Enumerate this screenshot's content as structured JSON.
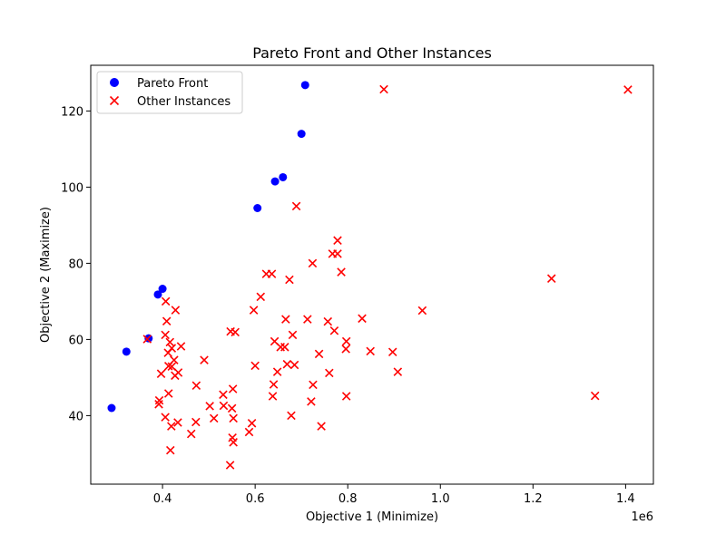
{
  "chart_data": {
    "type": "scatter",
    "title": "Pareto Front and Other Instances",
    "xlabel": "Objective 1 (Minimize)",
    "ylabel": "Objective 2 (Maximize)",
    "x_offset_label": "1e6",
    "xlim": [
      245000,
      1460000
    ],
    "ylim": [
      22,
      132
    ],
    "x_ticks": [
      0.4,
      0.6,
      0.8,
      1.0,
      1.2,
      1.4
    ],
    "x_tick_labels": [
      "0.4",
      "0.6",
      "0.8",
      "1.0",
      "1.2",
      "1.4"
    ],
    "y_ticks": [
      40,
      60,
      80,
      100,
      120
    ],
    "y_tick_labels": [
      "40",
      "60",
      "80",
      "100",
      "120"
    ],
    "grid": false,
    "legend_position": "top-left",
    "series": [
      {
        "name": "Pareto Front",
        "marker": "circle",
        "color": "#0000ff",
        "points": [
          [
            290000,
            42.0
          ],
          [
            322000,
            56.8
          ],
          [
            370000,
            60.3
          ],
          [
            390000,
            71.8
          ],
          [
            400000,
            73.3
          ],
          [
            605000,
            94.5
          ],
          [
            643000,
            101.5
          ],
          [
            660000,
            102.6
          ],
          [
            700000,
            114.0
          ],
          [
            708000,
            126.8
          ]
        ]
      },
      {
        "name": "Other Instances",
        "marker": "x",
        "color": "#ff0000",
        "points": [
          [
            878000,
            125.7
          ],
          [
            1405000,
            125.6
          ],
          [
            689000,
            95.0
          ],
          [
            778000,
            86.0
          ],
          [
            767000,
            82.5
          ],
          [
            778000,
            82.5
          ],
          [
            724000,
            80.0
          ],
          [
            786000,
            77.7
          ],
          [
            624000,
            77.2
          ],
          [
            636000,
            77.2
          ],
          [
            674000,
            75.7
          ],
          [
            1240000,
            76.0
          ],
          [
            407000,
            70.0
          ],
          [
            612000,
            71.2
          ],
          [
            428000,
            67.7
          ],
          [
            597000,
            67.7
          ],
          [
            961000,
            67.6
          ],
          [
            367000,
            60.1
          ],
          [
            409000,
            64.8
          ],
          [
            666000,
            65.3
          ],
          [
            713000,
            65.3
          ],
          [
            757000,
            64.7
          ],
          [
            831000,
            65.5
          ],
          [
            547000,
            62.1
          ],
          [
            557000,
            61.9
          ],
          [
            771000,
            62.3
          ],
          [
            406000,
            61.2
          ],
          [
            681000,
            61.2
          ],
          [
            416000,
            59.3
          ],
          [
            420000,
            57.7
          ],
          [
            412000,
            56.5
          ],
          [
            440000,
            58.2
          ],
          [
            642000,
            59.5
          ],
          [
            797000,
            59.5
          ],
          [
            655000,
            58.0
          ],
          [
            664000,
            58.0
          ],
          [
            796000,
            57.5
          ],
          [
            738000,
            56.2
          ],
          [
            849000,
            56.9
          ],
          [
            897000,
            56.7
          ],
          [
            425000,
            54.6
          ],
          [
            490000,
            54.6
          ],
          [
            600000,
            53.1
          ],
          [
            669000,
            53.5
          ],
          [
            685000,
            53.3
          ],
          [
            413000,
            53.0
          ],
          [
            420000,
            52.9
          ],
          [
            397000,
            51.0
          ],
          [
            434000,
            51.3
          ],
          [
            427000,
            50.5
          ],
          [
            648000,
            51.5
          ],
          [
            760000,
            51.2
          ],
          [
            908000,
            51.5
          ],
          [
            473000,
            47.9
          ],
          [
            640000,
            48.2
          ],
          [
            725000,
            48.1
          ],
          [
            531000,
            45.5
          ],
          [
            552000,
            47.0
          ],
          [
            638000,
            45.1
          ],
          [
            413000,
            45.8
          ],
          [
            797000,
            45.1
          ],
          [
            1334000,
            45.2
          ],
          [
            393000,
            44.0
          ],
          [
            392000,
            43.0
          ],
          [
            502000,
            42.5
          ],
          [
            532000,
            42.6
          ],
          [
            550000,
            41.9
          ],
          [
            721000,
            43.7
          ],
          [
            406000,
            39.6
          ],
          [
            511000,
            39.3
          ],
          [
            553000,
            39.3
          ],
          [
            593000,
            38.0
          ],
          [
            678000,
            40.0
          ],
          [
            419000,
            37.2
          ],
          [
            433000,
            38.2
          ],
          [
            472000,
            38.3
          ],
          [
            743000,
            37.2
          ],
          [
            462000,
            35.2
          ],
          [
            587000,
            35.7
          ],
          [
            551000,
            34.2
          ],
          [
            553000,
            33.0
          ],
          [
            417000,
            30.9
          ],
          [
            546000,
            27.0
          ]
        ]
      }
    ]
  }
}
